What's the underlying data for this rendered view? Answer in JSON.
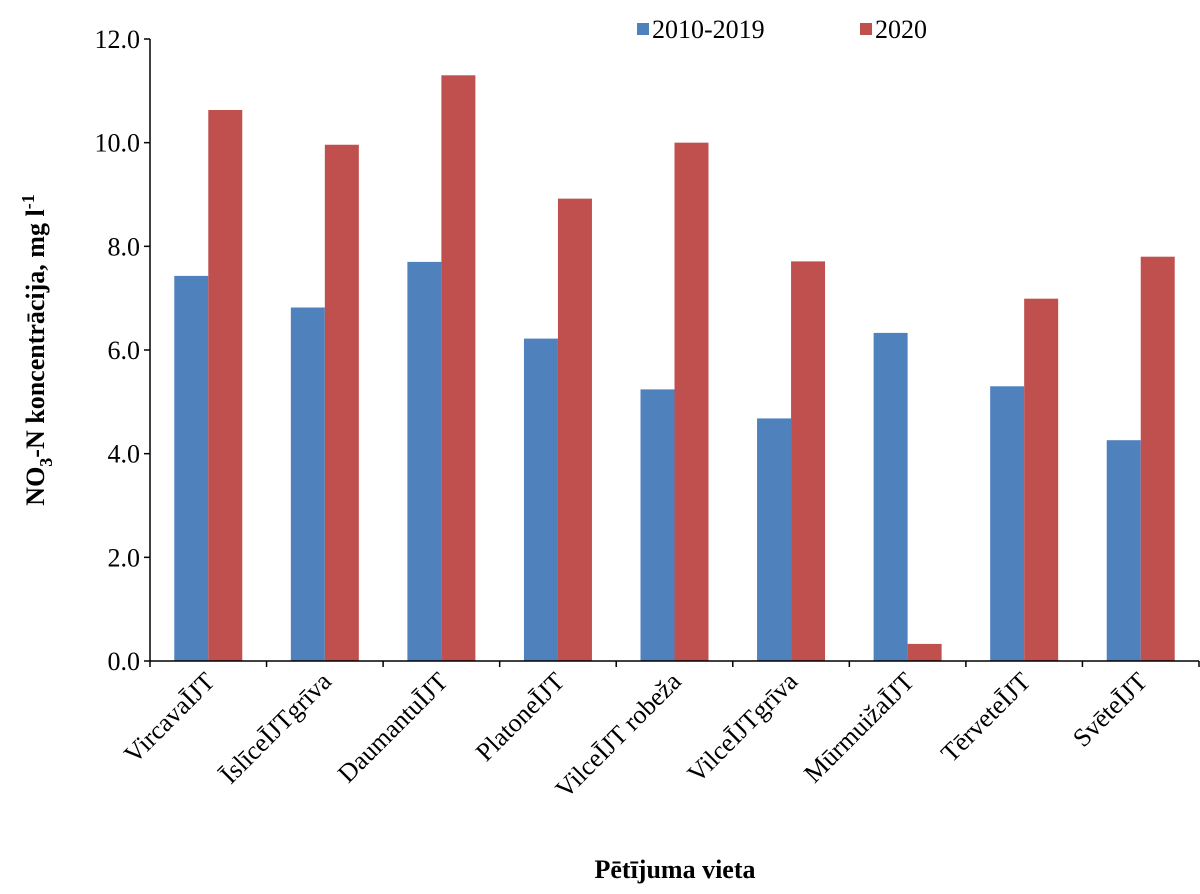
{
  "chart_data": {
    "type": "bar",
    "x_label": "Pētījuma vieta",
    "y_label": [
      "NO",
      "3",
      "-N koncentrācija, mg l",
      "-1"
    ],
    "categories": [
      "VircavaĪJT",
      "ĪslīceĪJTgrīva",
      "DaumantuĪJT",
      "PlatoneĪJT",
      "VilceĪJT robeža",
      "VilceĪJTgrīva",
      "MūrmuižaĪJT",
      "TērveteĪJT",
      "SvēteĪJT"
    ],
    "series": [
      {
        "name": "2010-2019",
        "color": "#4f81bd",
        "values": [
          7.43,
          6.82,
          7.7,
          6.22,
          5.24,
          4.68,
          6.33,
          5.3,
          4.26
        ]
      },
      {
        "name": "2020",
        "color": "#c0504d",
        "values": [
          10.63,
          9.96,
          11.3,
          8.92,
          10.0,
          7.71,
          0.33,
          6.99,
          7.8
        ]
      }
    ],
    "ylim": [
      0,
      12
    ],
    "yticks": [
      {
        "value": 0,
        "label": "0.0"
      },
      {
        "value": 2,
        "label": "2.0"
      },
      {
        "value": 4,
        "label": "4.0"
      },
      {
        "value": 6,
        "label": "6.0"
      },
      {
        "value": 8,
        "label": "8.0"
      },
      {
        "value": 10,
        "label": "10.0"
      },
      {
        "value": 12,
        "label": "12.0"
      }
    ],
    "grid": false,
    "legend": "top"
  }
}
